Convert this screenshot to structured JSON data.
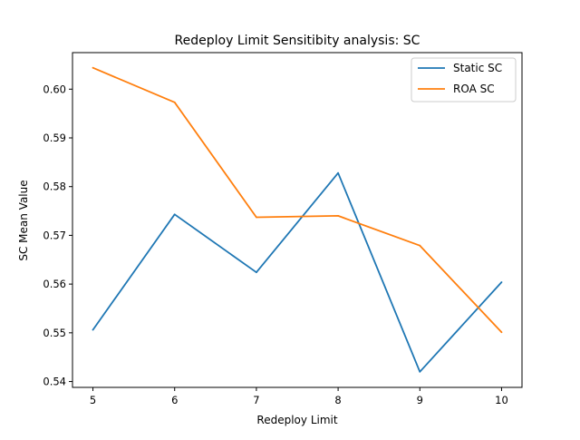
{
  "chart_data": {
    "type": "line",
    "title": "Redeploy Limit Sensitibity analysis: SC",
    "xlabel": "Redeploy Limit",
    "ylabel": "SC Mean Value",
    "x": [
      5,
      6,
      7,
      8,
      9,
      10
    ],
    "xlim": [
      4.75,
      10.25
    ],
    "ylim": [
      0.5388,
      0.6075
    ],
    "xticks": [
      5,
      6,
      7,
      8,
      9,
      10
    ],
    "xtick_labels": [
      "5",
      "6",
      "7",
      "8",
      "9",
      "10"
    ],
    "yticks": [
      0.54,
      0.55,
      0.56,
      0.57,
      0.58,
      0.59,
      0.6
    ],
    "ytick_labels": [
      "0.54",
      "0.55",
      "0.56",
      "0.57",
      "0.58",
      "0.59",
      "0.60"
    ],
    "grid": false,
    "legend_position": "top-right",
    "series": [
      {
        "name": "Static SC",
        "color": "#1f77b4",
        "values": [
          0.5506,
          0.5743,
          0.5624,
          0.5828,
          0.542,
          0.5604
        ]
      },
      {
        "name": "ROA SC",
        "color": "#ff7f0e",
        "values": [
          0.6044,
          0.5973,
          0.5737,
          0.574,
          0.5679,
          0.5501
        ]
      }
    ]
  }
}
